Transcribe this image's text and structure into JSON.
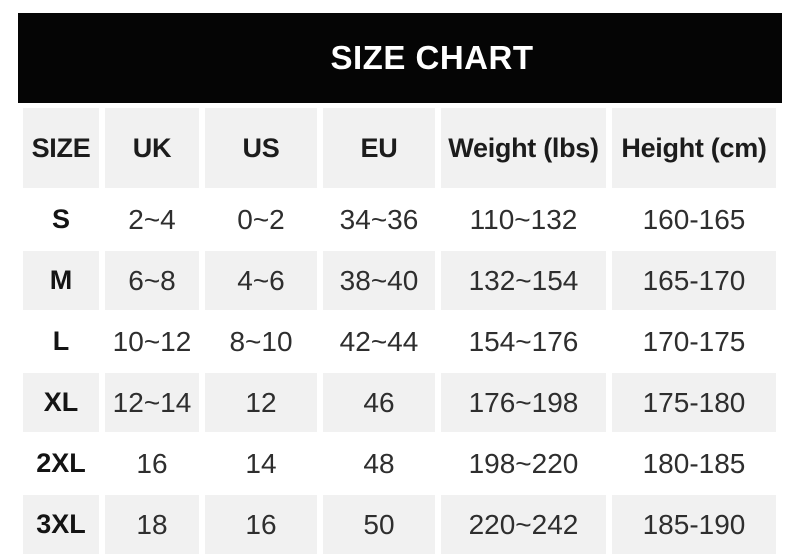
{
  "title": "SIZE CHART",
  "chart_data": {
    "type": "table",
    "title": "SIZE CHART",
    "columns": [
      "SIZE",
      "UK",
      "US",
      "EU",
      "Weight (lbs)",
      "Height (cm)"
    ],
    "rows": [
      [
        "S",
        "2~4",
        "0~2",
        "34~36",
        "110~132",
        "160-165"
      ],
      [
        "M",
        "6~8",
        "4~6",
        "38~40",
        "132~154",
        "165-170"
      ],
      [
        "L",
        "10~12",
        "8~10",
        "42~44",
        "154~176",
        "170-175"
      ],
      [
        "XL",
        "12~14",
        "12",
        "46",
        "176~198",
        "175-180"
      ],
      [
        "2XL",
        "16",
        "14",
        "48",
        "198~220",
        "180-185"
      ],
      [
        "3XL",
        "18",
        "16",
        "50",
        "220~242",
        "185-190"
      ]
    ],
    "layout": {
      "shaded_rows": [
        "header",
        "M",
        "XL",
        "3XL"
      ],
      "legend": "none",
      "grid": "alternating-row-shading"
    }
  },
  "colors": {
    "title_bar_bg": "#050505",
    "title_text": "#ffffff",
    "shaded_cell_bg": "#f1f1f1",
    "header_text": "#1c1c1c",
    "data_text": "#2e2e2e",
    "page_bg": "#ffffff"
  }
}
